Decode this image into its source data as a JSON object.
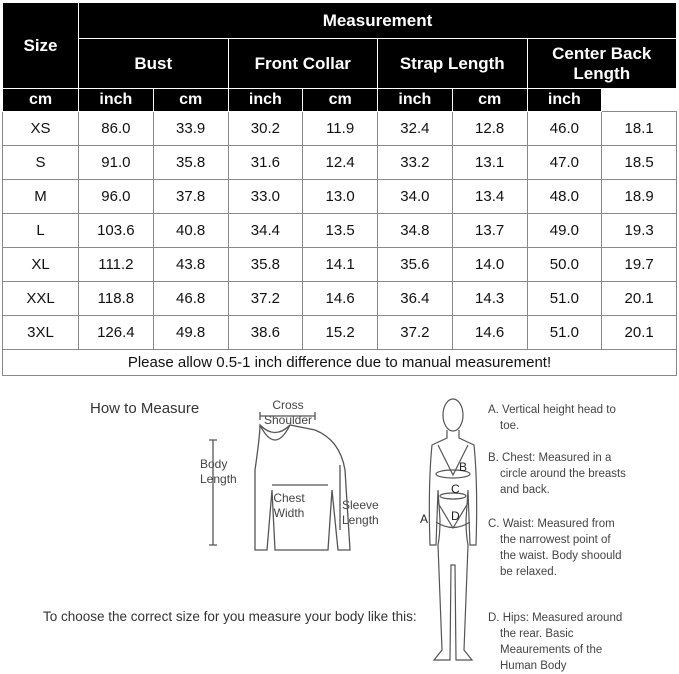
{
  "table": {
    "size_header": "Size",
    "measurement_header": "Measurement",
    "groups": [
      "Bust",
      "Front Collar",
      "Strap Length",
      "Center Back Length"
    ],
    "units": [
      "cm",
      "inch",
      "cm",
      "inch",
      "cm",
      "inch",
      "cm",
      "inch"
    ],
    "rows": [
      [
        "XS",
        "86.0",
        "33.9",
        "30.2",
        "11.9",
        "32.4",
        "12.8",
        "46.0",
        "18.1"
      ],
      [
        "S",
        "91.0",
        "35.8",
        "31.6",
        "12.4",
        "33.2",
        "13.1",
        "47.0",
        "18.5"
      ],
      [
        "M",
        "96.0",
        "37.8",
        "33.0",
        "13.0",
        "34.0",
        "13.4",
        "48.0",
        "18.9"
      ],
      [
        "L",
        "103.6",
        "40.8",
        "34.4",
        "13.5",
        "34.8",
        "13.7",
        "49.0",
        "19.3"
      ],
      [
        "XL",
        "111.2",
        "43.8",
        "35.8",
        "14.1",
        "35.6",
        "14.0",
        "50.0",
        "19.7"
      ],
      [
        "XXL",
        "118.8",
        "46.8",
        "37.2",
        "14.6",
        "36.4",
        "14.3",
        "51.0",
        "20.1"
      ],
      [
        "3XL",
        "126.4",
        "49.8",
        "38.6",
        "15.2",
        "37.2",
        "14.6",
        "51.0",
        "20.1"
      ]
    ],
    "note": "Please allow 0.5-1 inch difference due to manual measurement!"
  },
  "guide": {
    "title": "How to Measure",
    "cross_shoulder": "Cross Shoulder",
    "body_length": "Body Length",
    "chest_width": "Chest Width",
    "sleeve_length": "Sleeve Length",
    "instruction": "To choose the correct size for you measure your body like this:",
    "letters": [
      "A",
      "B",
      "C",
      "D"
    ],
    "items": [
      "A. Vertical height head to toe.",
      "B. Chest: Measured in a circle around the breasts and back.",
      "C. Waist: Measured from the narrowest point of the waist. Body shoould be relaxed.",
      "D. Hips: Measured around the rear. Basic Meaurements of the Human Body"
    ]
  }
}
